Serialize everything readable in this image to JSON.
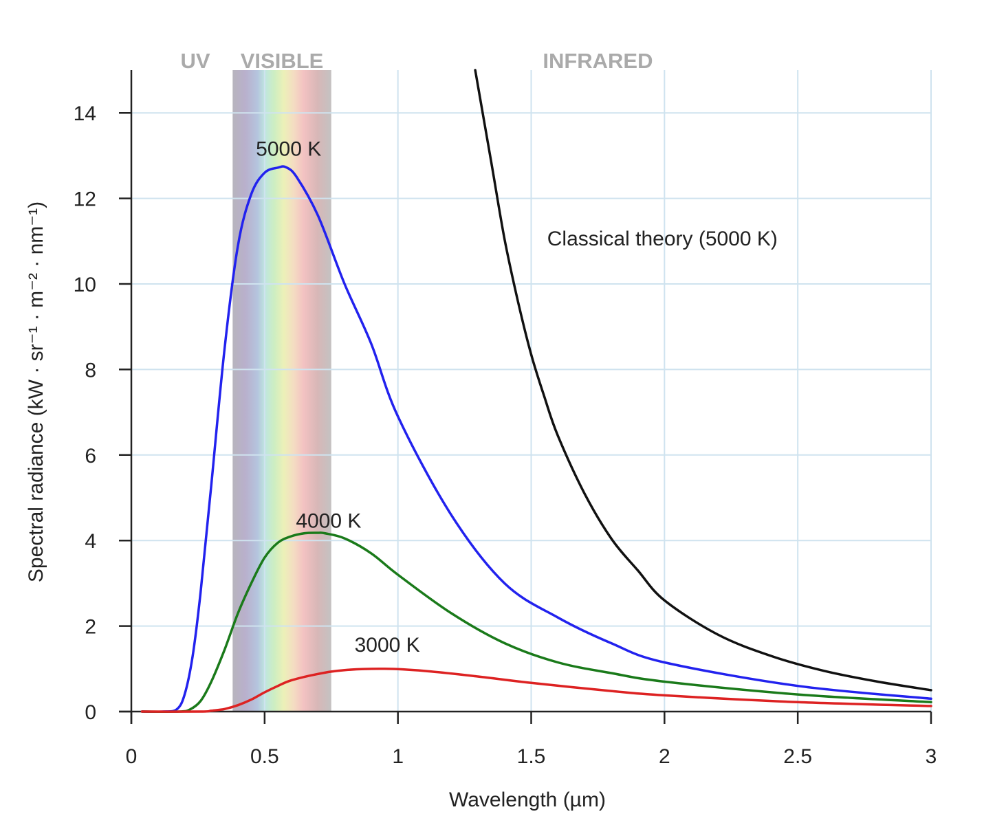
{
  "chart_data": {
    "type": "line",
    "xlabel": "Wavelength (µm)",
    "ylabel": "Spectral radiance (kW · sr⁻¹ · m⁻² · nm⁻¹)",
    "xlim": [
      0,
      3
    ],
    "ylim": [
      0,
      15
    ],
    "x_ticks": [
      "0",
      "0.5",
      "1",
      "1.5",
      "2",
      "2.5",
      "3"
    ],
    "y_ticks": [
      "0",
      "2",
      "4",
      "6",
      "8",
      "10",
      "12",
      "14"
    ],
    "grid": true,
    "regions": [
      {
        "label": "UV",
        "x_center": 0.24
      },
      {
        "label": "VISIBLE",
        "x_range": [
          0.38,
          0.75
        ]
      },
      {
        "label": "INFRARED",
        "x_center": 1.75
      }
    ],
    "series": [
      {
        "name": "5000 K",
        "color": "#2222ee",
        "label_at": [
          0.59,
          13.0
        ],
        "x": [
          0.04,
          0.12,
          0.17,
          0.2,
          0.23,
          0.26,
          0.3,
          0.35,
          0.4,
          0.45,
          0.5,
          0.55,
          0.58,
          0.62,
          0.7,
          0.8,
          0.9,
          1.0,
          1.2,
          1.4,
          1.6,
          1.8,
          2.0,
          2.5,
          3.0
        ],
        "y": [
          0,
          0,
          0.05,
          0.4,
          1.3,
          2.8,
          5.3,
          8.5,
          10.9,
          12.1,
          12.6,
          12.72,
          12.73,
          12.5,
          11.6,
          10.0,
          8.6,
          6.9,
          4.6,
          3.0,
          2.2,
          1.6,
          1.15,
          0.6,
          0.3
        ]
      },
      {
        "name": "4000 K",
        "color": "#1a7a1a",
        "label_at": [
          0.74,
          4.3
        ],
        "x": [
          0.04,
          0.18,
          0.22,
          0.26,
          0.3,
          0.35,
          0.4,
          0.45,
          0.5,
          0.55,
          0.6,
          0.65,
          0.7,
          0.725,
          0.8,
          0.9,
          1.0,
          1.2,
          1.4,
          1.6,
          1.8,
          2.0,
          2.5,
          3.0
        ],
        "y": [
          0,
          0,
          0.05,
          0.25,
          0.7,
          1.45,
          2.3,
          3.0,
          3.6,
          3.95,
          4.1,
          4.17,
          4.18,
          4.17,
          4.05,
          3.7,
          3.2,
          2.3,
          1.6,
          1.15,
          0.9,
          0.7,
          0.4,
          0.22
        ]
      },
      {
        "name": "3000 K",
        "color": "#dd2222",
        "label_at": [
          0.96,
          1.4
        ],
        "x": [
          0.04,
          0.26,
          0.3,
          0.35,
          0.4,
          0.45,
          0.5,
          0.55,
          0.6,
          0.7,
          0.8,
          0.95,
          1.1,
          1.3,
          1.5,
          1.8,
          2.0,
          2.5,
          3.0
        ],
        "y": [
          0,
          0,
          0.02,
          0.06,
          0.15,
          0.28,
          0.45,
          0.6,
          0.73,
          0.88,
          0.97,
          1.0,
          0.95,
          0.82,
          0.67,
          0.48,
          0.38,
          0.22,
          0.13
        ]
      },
      {
        "name": "Classical theory (5000 K)",
        "color": "#111111",
        "label_at": [
          1.56,
          10.9
        ],
        "x": [
          1.29,
          1.35,
          1.4,
          1.45,
          1.5,
          1.55,
          1.6,
          1.7,
          1.8,
          1.9,
          2.0,
          2.2,
          2.4,
          2.6,
          2.8,
          3.0
        ],
        "y": [
          15,
          12.85,
          11.05,
          9.6,
          8.35,
          7.35,
          6.45,
          5.1,
          4.05,
          3.3,
          2.6,
          1.8,
          1.3,
          0.95,
          0.7,
          0.5
        ]
      }
    ]
  }
}
